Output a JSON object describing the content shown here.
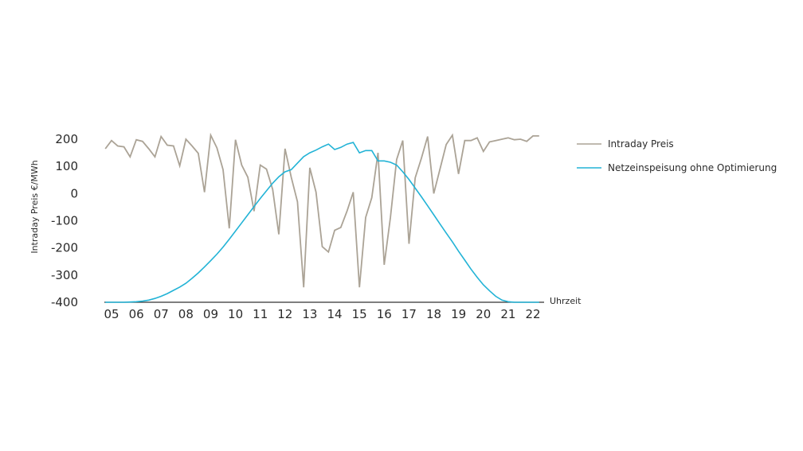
{
  "chart_data": {
    "type": "line",
    "ylabel": "Intraday Preis €/MWh",
    "xlabel": "Uhrzeit",
    "ylim": [
      -400,
      200
    ],
    "xlim": [
      4.75,
      22.3
    ],
    "yticks": [
      200,
      100,
      0,
      -100,
      -200,
      -300,
      -400
    ],
    "ytick_labels": [
      "200",
      "100",
      "0",
      "-100",
      "-200",
      "-300",
      "-400"
    ],
    "xticks": [
      5,
      6,
      7,
      8,
      9,
      10,
      11,
      12,
      13,
      14,
      15,
      16,
      17,
      18,
      19,
      20,
      21,
      22
    ],
    "xtick_labels": [
      "05",
      "06",
      "07",
      "08",
      "09",
      "10",
      "11",
      "12",
      "13",
      "14",
      "15",
      "16",
      "17",
      "18",
      "19",
      "20",
      "21",
      "22"
    ],
    "grid": false,
    "legend_position": "right",
    "series": [
      {
        "name": "Intraday Preis",
        "color": "#aba396",
        "x": [
          4.75,
          5.0,
          5.25,
          5.5,
          5.75,
          6.0,
          6.25,
          6.5,
          6.75,
          7.0,
          7.25,
          7.5,
          7.75,
          8.0,
          8.25,
          8.5,
          8.75,
          9.0,
          9.25,
          9.5,
          9.75,
          10.0,
          10.25,
          10.5,
          10.75,
          11.0,
          11.25,
          11.5,
          11.75,
          12.0,
          12.25,
          12.5,
          12.75,
          13.0,
          13.25,
          13.5,
          13.75,
          14.0,
          14.25,
          14.5,
          14.75,
          15.0,
          15.25,
          15.5,
          15.75,
          16.0,
          16.25,
          16.5,
          16.75,
          17.0,
          17.25,
          17.5,
          17.75,
          18.0,
          18.25,
          18.5,
          18.75,
          19.0,
          19.25,
          19.5,
          19.75,
          20.0,
          20.25,
          20.5,
          20.75,
          21.0,
          21.25,
          21.5,
          21.75,
          22.0,
          22.25
        ],
        "values": [
          165,
          195,
          175,
          172,
          135,
          198,
          192,
          165,
          135,
          210,
          178,
          175,
          102,
          200,
          175,
          148,
          5,
          215,
          168,
          88,
          -128,
          198,
          105,
          60,
          -65,
          105,
          90,
          15,
          -150,
          165,
          60,
          -30,
          -345,
          95,
          5,
          -195,
          -215,
          -135,
          -125,
          -65,
          5,
          -345,
          -88,
          -15,
          150,
          -262,
          -88,
          125,
          195,
          -185,
          58,
          130,
          210,
          0,
          90,
          180,
          215,
          72,
          195,
          195,
          205,
          155,
          190,
          195,
          200,
          205,
          198,
          200,
          192,
          212,
          212
        ]
      },
      {
        "name": "Netzeinspeisung ohne Optimierung",
        "color": "#22b3d6",
        "x": [
          4.75,
          5.0,
          5.25,
          5.5,
          5.75,
          6.0,
          6.25,
          6.5,
          6.75,
          7.0,
          7.25,
          7.5,
          7.75,
          8.0,
          8.25,
          8.5,
          8.75,
          9.0,
          9.25,
          9.5,
          9.75,
          10.0,
          10.25,
          10.5,
          10.75,
          11.0,
          11.25,
          11.5,
          11.75,
          12.0,
          12.25,
          12.5,
          12.75,
          13.0,
          13.25,
          13.5,
          13.75,
          14.0,
          14.25,
          14.5,
          14.75,
          15.0,
          15.25,
          15.5,
          15.75,
          16.0,
          16.25,
          16.5,
          16.75,
          17.0,
          17.25,
          17.5,
          17.75,
          18.0,
          18.25,
          18.5,
          18.75,
          19.0,
          19.25,
          19.5,
          19.75,
          20.0,
          20.25,
          20.5,
          20.75,
          21.0,
          21.25,
          21.5,
          21.75,
          22.0,
          22.25
        ],
        "values": [
          -400,
          -400,
          -400,
          -400,
          -399,
          -398,
          -396,
          -392,
          -386,
          -378,
          -368,
          -356,
          -344,
          -330,
          -312,
          -292,
          -270,
          -247,
          -223,
          -197,
          -168,
          -138,
          -108,
          -78,
          -48,
          -18,
          10,
          38,
          62,
          80,
          88,
          112,
          136,
          150,
          160,
          172,
          182,
          162,
          170,
          182,
          188,
          150,
          158,
          158,
          120,
          120,
          115,
          105,
          80,
          52,
          20,
          -12,
          -45,
          -78,
          -112,
          -145,
          -178,
          -212,
          -245,
          -278,
          -308,
          -336,
          -358,
          -378,
          -392,
          -398,
          -400,
          -400,
          -400,
          -400,
          -400
        ]
      }
    ]
  }
}
